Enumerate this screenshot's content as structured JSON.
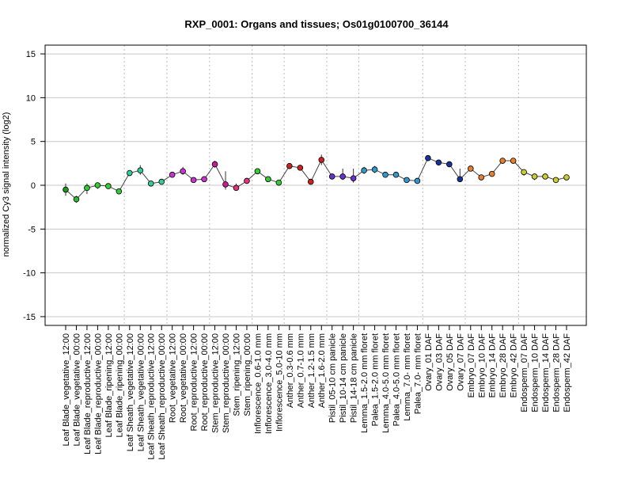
{
  "chart_data": {
    "type": "scatter",
    "title": "RXP_0001: Organs and tissues; Os01g0100700_36144",
    "xlabel": "",
    "ylabel": "normalized Cy3 signal intensity (log2)",
    "ylim": [
      -16,
      16
    ],
    "yticks": [
      -15,
      -10,
      -5,
      0,
      5,
      10,
      15
    ],
    "grid": "horizontal gridlines at y ticks; dotted vertical separators between tissue groups",
    "connect_points": true,
    "categories": [
      "Leaf Blade_vegetative_12:00",
      "Leaf Blade_vegetative_00:00",
      "Leaf Blade_reproductive_12:00",
      "Leaf Blade_reproductive_00:00",
      "Leaf Blade_ripening_12:00",
      "Leaf Blade_ripening_00:00",
      "Leaf Sheath_vegetative_12:00",
      "Leaf Sheath_vegetative_00:00",
      "Leaf Sheath_reproductive_12:00",
      "Leaf Sheath_reproductive_00:00",
      "Root_vegetative_12:00",
      "Root_vegetative_00:00",
      "Root_reproductive_12:00",
      "Root_reproductive_00:00",
      "Stem_reproductive_12:00",
      "Stem_reproductive_00:00",
      "Stem_ripening_12:00",
      "Stem_ripening_00:00",
      "Inflorescence_0.6-1.0 mm",
      "Inflorescence_3.0-4.0 mm",
      "Inflorescence_5.0-10 mm",
      "Anther_0.3-0.6 mm",
      "Anther_0.7-1.0 mm",
      "Anther_1.2-1.5 mm",
      "Anther_1.6-2.0 mm",
      "Pistil_05-10 cm panicle",
      "Pistil_10-14 cm panicle",
      "Pistil_14-18 cm panicle",
      "Lemma_1.5-2.0 mm floret",
      "Palea_1.5-2.0 mm floret",
      "Lemma_4.0-5.0 mm floret",
      "Palea_4.0-5.0 mm floret",
      "Lemma_7.0- mm floret",
      "Palea_7.0- mm floret",
      "Ovary_01 DAF",
      "Ovary_03 DAF",
      "Ovary_05 DAF",
      "Ovary_07 DAF",
      "Embryo_07 DAF",
      "Embryo_10 DAF",
      "Embryo_14 DAF",
      "Embryo_28 DAF",
      "Embryo_42 DAF",
      "Endosperm_07 DAF",
      "Endosperm_10 DAF",
      "Endosperm_14 DAF",
      "Endosperm_28 DAF",
      "Endosperm_42 DAF"
    ],
    "series": [
      {
        "values": [
          -0.5,
          -1.6,
          -0.3,
          0.0,
          -0.1,
          -0.7,
          1.4,
          1.7,
          0.2,
          0.4,
          1.2,
          1.6,
          0.6,
          0.7,
          2.4,
          0.1,
          -0.3,
          0.5,
          1.6,
          0.7,
          0.3,
          2.2,
          2.0,
          0.4,
          2.9,
          1.0,
          1.0,
          0.8,
          1.7,
          1.8,
          1.2,
          1.2,
          0.6,
          0.5,
          3.1,
          2.6,
          2.4,
          0.7,
          1.9,
          0.9,
          1.3,
          2.8,
          2.8,
          1.5,
          1.0,
          1.0,
          0.6,
          0.9
        ],
        "error_low": [
          -1.2,
          -2.0,
          -1.0,
          -0.4,
          -0.2,
          -0.9,
          1.3,
          1.2,
          0.1,
          0.3,
          1.0,
          1.2,
          0.5,
          0.6,
          2.0,
          -0.5,
          -0.6,
          0.3,
          1.5,
          0.6,
          0.0,
          2.1,
          1.9,
          0.2,
          2.3,
          0.8,
          0.6,
          0.3,
          1.3,
          1.4,
          1.1,
          1.0,
          0.5,
          0.3,
          2.8,
          2.4,
          2.2,
          0.4,
          1.7,
          0.8,
          1.2,
          2.6,
          2.6,
          1.1,
          0.6,
          0.8,
          0.4,
          0.7
        ],
        "error_high": [
          0.2,
          -1.2,
          0.2,
          0.3,
          0.0,
          -0.5,
          1.5,
          2.3,
          0.3,
          0.5,
          1.4,
          2.1,
          0.7,
          0.8,
          2.8,
          1.6,
          0.2,
          0.7,
          1.8,
          0.8,
          0.6,
          2.3,
          2.2,
          0.6,
          3.5,
          1.3,
          1.9,
          1.9,
          2.1,
          2.2,
          1.4,
          1.4,
          0.7,
          0.6,
          3.3,
          2.8,
          2.6,
          1.9,
          2.1,
          1.0,
          1.5,
          3.0,
          3.0,
          1.8,
          1.3,
          1.1,
          0.8,
          1.0
        ],
        "colors": [
          "#1a9a1a",
          "#2eb82e",
          "#33cc33",
          "#33cc33",
          "#33cc33",
          "#33cc33",
          "#33cc99",
          "#33cc99",
          "#33cc99",
          "#33cc99",
          "#cc33cc",
          "#cc33cc",
          "#cc33cc",
          "#cc33cc",
          "#cc1a99",
          "#cc1a99",
          "#e6337f",
          "#e6337f",
          "#33cc33",
          "#33cc33",
          "#33cc33",
          "#cc2222",
          "#cc2222",
          "#cc2222",
          "#cc2222",
          "#6633cc",
          "#6633cc",
          "#6633cc",
          "#3399cc",
          "#3399cc",
          "#3399cc",
          "#3399cc",
          "#3399cc",
          "#3399cc",
          "#1a3399",
          "#1a3399",
          "#1a3399",
          "#1a3399",
          "#e6802e",
          "#e6802e",
          "#e6802e",
          "#e6802e",
          "#e6802e",
          "#cccc33",
          "#cccc33",
          "#cccc33",
          "#cccc33",
          "#cccc33"
        ]
      }
    ],
    "group_separators_after": [
      5,
      9,
      13,
      17,
      20,
      24,
      27,
      33,
      37,
      42
    ]
  }
}
